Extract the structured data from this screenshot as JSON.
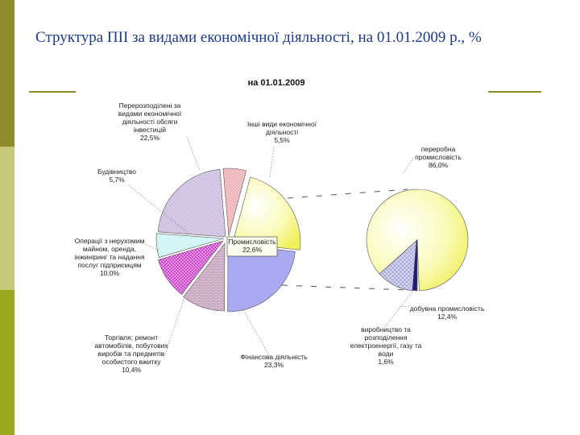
{
  "slide": {
    "title": "Структура ПІІ за видами економічної діяльності, на 01.01.2009 р., %",
    "colors": {
      "sidebar_dark": "#8c8c2a",
      "sidebar_light": "#c8c878",
      "sidebar_mid": "#9aa61e",
      "title": "#1d3a8a"
    }
  },
  "chart_data": [
    {
      "type": "pie",
      "title": "на 01.01.2009",
      "slices": [
        {
          "label": [
            "Промисловість",
            "22,6%"
          ],
          "value": 22.6,
          "color": "#f6f691"
        },
        {
          "label": [
            "Фінансова діяльність",
            "23,3%"
          ],
          "value": 23.3,
          "color": "#aaaaf2"
        },
        {
          "label": [
            "Торгівля; ремонт",
            "автомобілів, побутових",
            "виробів та предметів",
            "особистого вжитку",
            "10,4%"
          ],
          "value": 10.4,
          "color": "#e2c8dc"
        },
        {
          "label": [
            "Операції з нерухомим",
            "майном, оренда,",
            "інжиніринг та надання",
            "послуг підприємцям",
            "10,0%"
          ],
          "value": 10.0,
          "color": "#dd7ade"
        },
        {
          "label": [
            "Будівництво",
            "5,7%"
          ],
          "value": 5.7,
          "color": "#d4f4f6"
        },
        {
          "label": [
            "Перерозподілені за",
            "видами економічної",
            "діяльності обсяги",
            "інвестицій",
            "22,5%"
          ],
          "value": 22.5,
          "color": "#dcd0ea"
        },
        {
          "label": [
            "Інші види економічної",
            "діяльності",
            "5,5%"
          ],
          "value": 5.5,
          "color": "#f6c4c6"
        }
      ]
    },
    {
      "type": "pie",
      "title": "",
      "slices": [
        {
          "label": [
            "переробна",
            "промисловість",
            "86,0%"
          ],
          "value": 86.0,
          "color": "#fbfbb4"
        },
        {
          "label": [
            "добувна промисловість",
            "12,4%"
          ],
          "value": 12.4,
          "color": "#c8c8ee"
        },
        {
          "label": [
            "виробництво та",
            "розподілення",
            "електроенергії, газу та",
            "води",
            "1,6%"
          ],
          "value": 1.6,
          "color": "#1a1a7a"
        }
      ]
    }
  ]
}
